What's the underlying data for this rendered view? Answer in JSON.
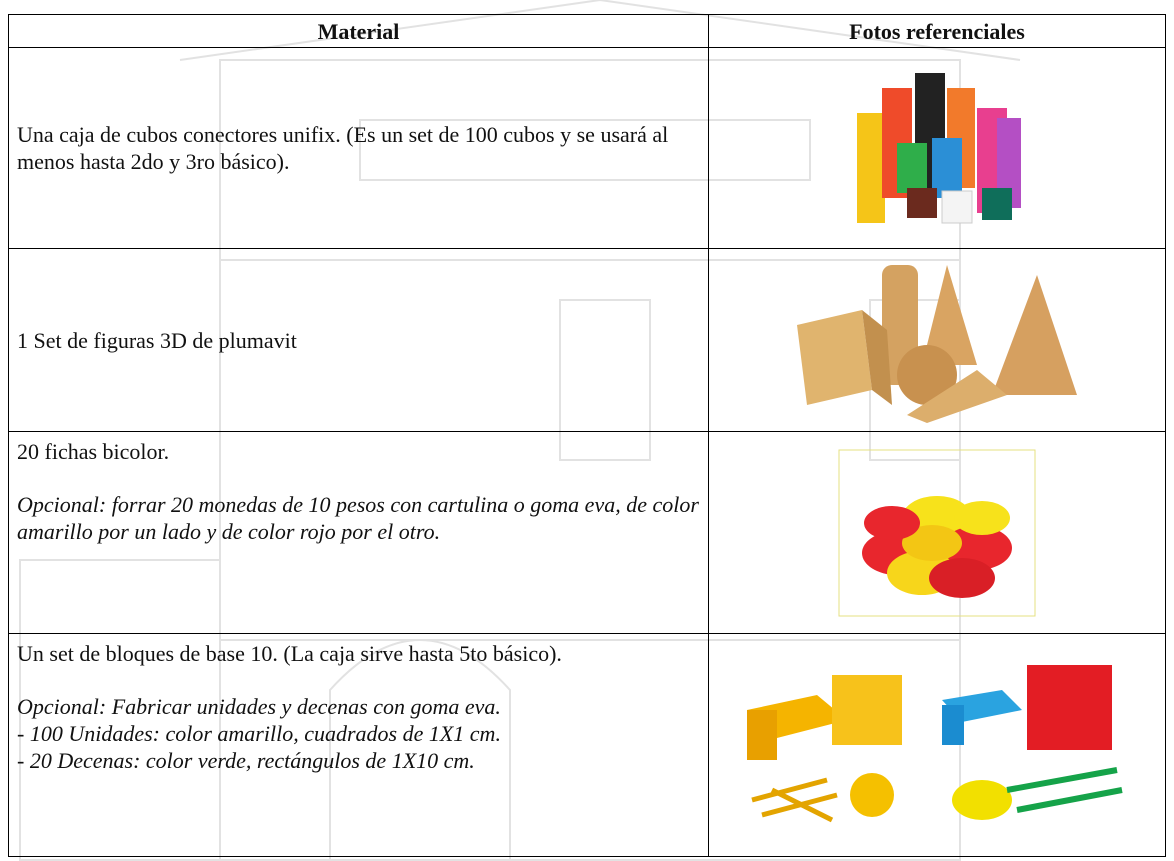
{
  "table": {
    "header": [
      "Material",
      "Fotos referenciales"
    ],
    "rows": [
      {
        "paragraphs": [
          {
            "italic": false,
            "lines": [
              "Una caja de cubos conectores unifix. (Es un set de 100 cubos y se usará al menos hasta 2do y 3ro básico)."
            ]
          }
        ]
      },
      {
        "paragraphs": [
          {
            "italic": false,
            "lines": [
              "1 Set de figuras 3D de plumavit"
            ]
          }
        ]
      },
      {
        "paragraphs": [
          {
            "italic": false,
            "lines": [
              "20 fichas bicolor."
            ]
          },
          {
            "italic": true,
            "lines": [
              "Opcional: forrar 20 monedas de 10 pesos con cartulina o goma eva, de color amarillo por un lado y de color rojo por el otro."
            ]
          }
        ]
      },
      {
        "paragraphs": [
          {
            "italic": false,
            "lines": [
              "Un set de bloques de base 10. (La caja sirve hasta 5to básico)."
            ]
          },
          {
            "italic": true,
            "lines": [
              "Opcional: Fabricar unidades y decenas con goma eva.",
              "- 100 Unidades: color amarillo, cuadrados de 1X1 cm.",
              "- 20 Decenas: color verde, rectángulos de 1X10 cm."
            ]
          }
        ]
      }
    ]
  }
}
